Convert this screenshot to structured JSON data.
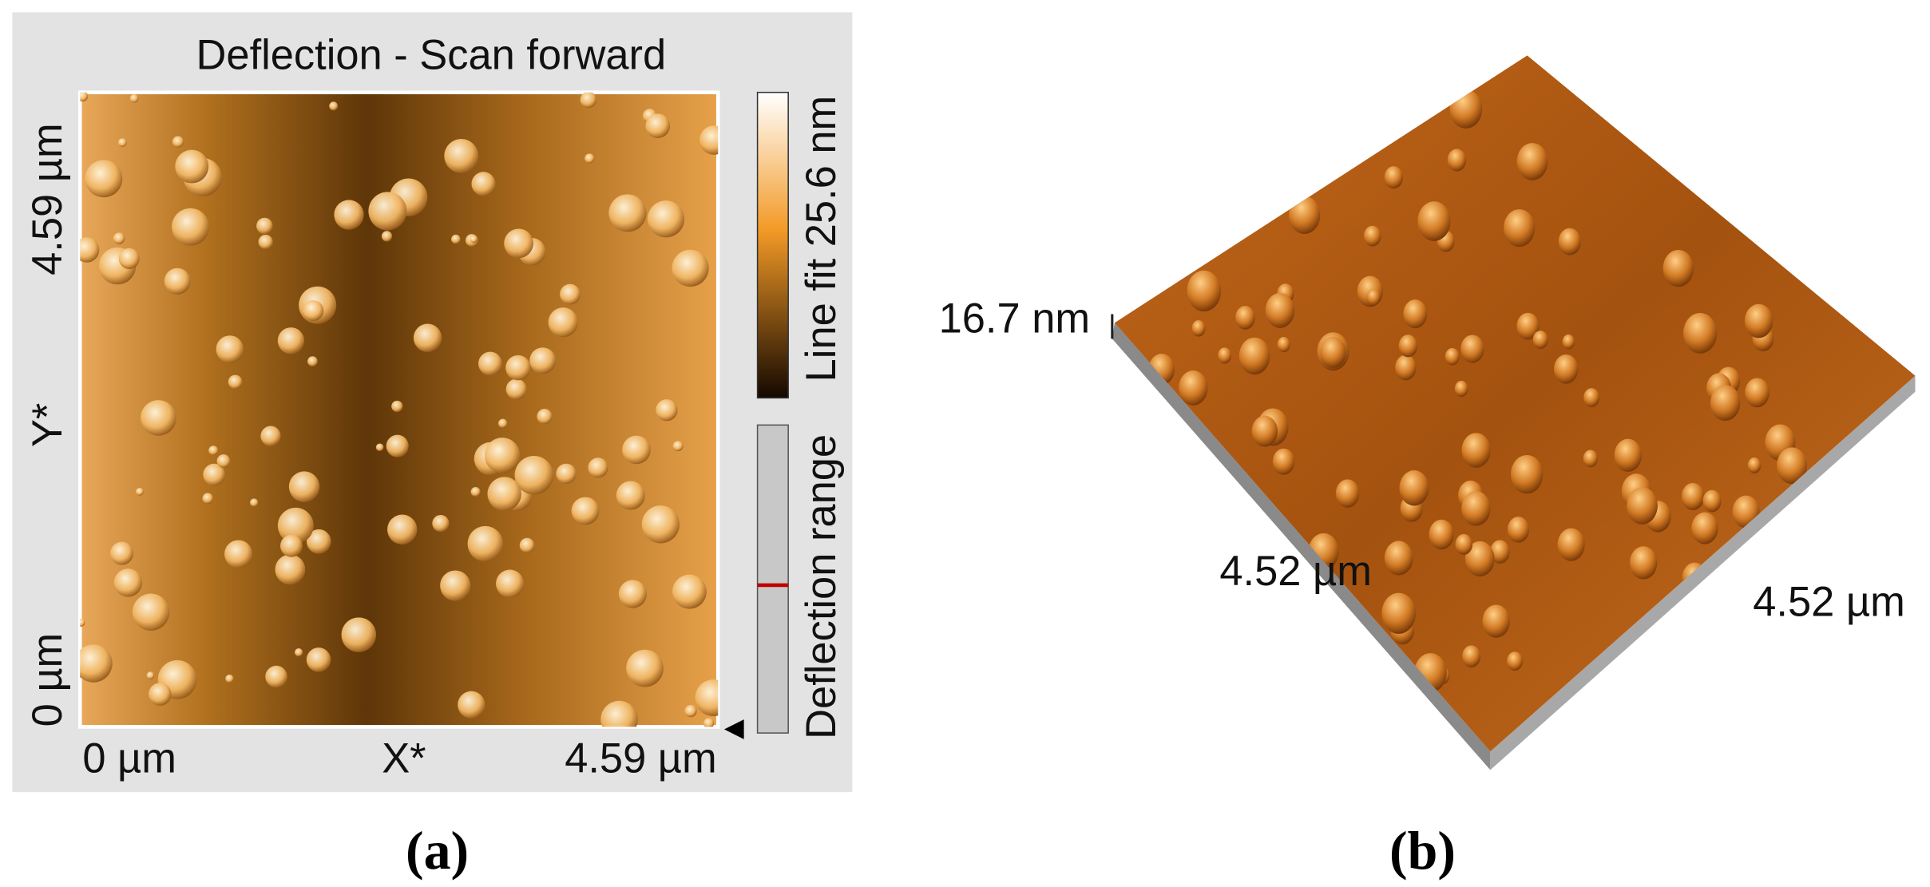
{
  "panel_a": {
    "title": "Deflection - Scan forward",
    "y_axis_label": "Y*",
    "y_ticks": [
      "4.59 µm",
      "0 µm"
    ],
    "x_axis_label": "X*",
    "x_ticks": [
      "0 µm",
      "4.59 µm"
    ],
    "colorbar_label": "Line fit 25.6 nm",
    "range_label": "Deflection range",
    "caption": "(a)"
  },
  "panel_b": {
    "z_label": "16.7 nm",
    "x_label": "4.52 µm",
    "y_label": "4.52 µm",
    "caption": "(b)"
  }
}
